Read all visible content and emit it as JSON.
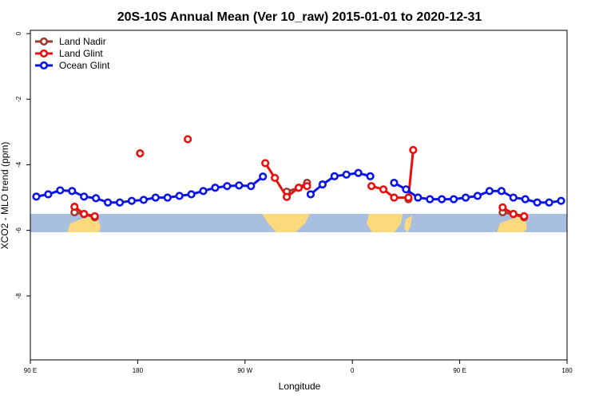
{
  "chart_data": {
    "type": "line",
    "title": "20S-10S Annual Mean (Ver 10_raw)   2015-01-01 to 2020-12-31",
    "x_label": "Longitude",
    "y_label": "XCO2 - MLO trend (ppm)",
    "xlim": [
      90,
      540
    ],
    "xticks": [
      {
        "value": 90,
        "label": "90 E"
      },
      180,
      {
        "value": 270,
        "label": "90 W"
      },
      {
        "value": 360,
        "label": "0"
      },
      {
        "value": 450,
        "label": "90 E"
      },
      {
        "value": 540,
        "label": "180"
      }
    ],
    "ylim": [
      -9.95,
      0.1
    ],
    "yticks": [
      0,
      -2,
      -4,
      -6,
      -8
    ],
    "legend": "top-left",
    "series": [
      {
        "name": "Land Nadir",
        "color": "#9e3a32",
        "x": [
          127,
          135,
          144,
          225,
          305,
          315,
          322,
          365,
          407,
          445,
          486,
          495,
          504
        ],
        "values": [
          -5.45,
          -5.5,
          -5.6,
          null,
          -4.82,
          -4.7,
          -4.55,
          null,
          -5.05,
          null,
          -5.45,
          -5.5,
          -5.6
        ]
      },
      {
        "name": "Land Glint",
        "color": "#e8100c",
        "x": [
          127,
          135,
          144,
          160,
          182,
          200,
          222,
          250,
          287,
          295,
          305,
          315,
          322,
          350,
          376,
          386,
          395,
          407,
          411,
          450,
          486,
          495,
          504
        ],
        "values": [
          -5.28,
          -5.5,
          -5.57,
          null,
          -3.65,
          null,
          -3.22,
          null,
          -3.95,
          -4.4,
          -4.98,
          -4.7,
          -4.65,
          null,
          -4.65,
          -4.75,
          -5.0,
          -5.0,
          -3.55,
          null,
          -5.3,
          -5.5,
          -5.57
        ]
      },
      {
        "name": "Ocean Glint",
        "color": "#0a14e6",
        "x": [
          95,
          105,
          115,
          125,
          135,
          145,
          155,
          165,
          175,
          185,
          195,
          205,
          215,
          225,
          235,
          245,
          255,
          265,
          275,
          285,
          295,
          305,
          315,
          325,
          335,
          345,
          355,
          365,
          375,
          385,
          395,
          405,
          415,
          425,
          435,
          445,
          455,
          465,
          475,
          485,
          495,
          505,
          515,
          525,
          535
        ],
        "values": [
          -4.97,
          -4.9,
          -4.78,
          -4.8,
          -4.97,
          -5.02,
          -5.15,
          -5.15,
          -5.1,
          -5.07,
          -5.0,
          -5.0,
          -4.95,
          -4.9,
          -4.8,
          -4.7,
          -4.65,
          -4.63,
          -4.65,
          -4.36,
          null,
          null,
          null,
          -4.9,
          -4.6,
          -4.35,
          -4.3,
          -4.25,
          -4.35,
          null,
          -4.55,
          -4.75,
          -5.0,
          -5.05,
          -5.05,
          -5.05,
          -5.0,
          -4.95,
          -4.8,
          -4.8,
          -5.0,
          -5.05,
          -5.15,
          -5.15,
          -5.1
        ]
      }
    ]
  }
}
